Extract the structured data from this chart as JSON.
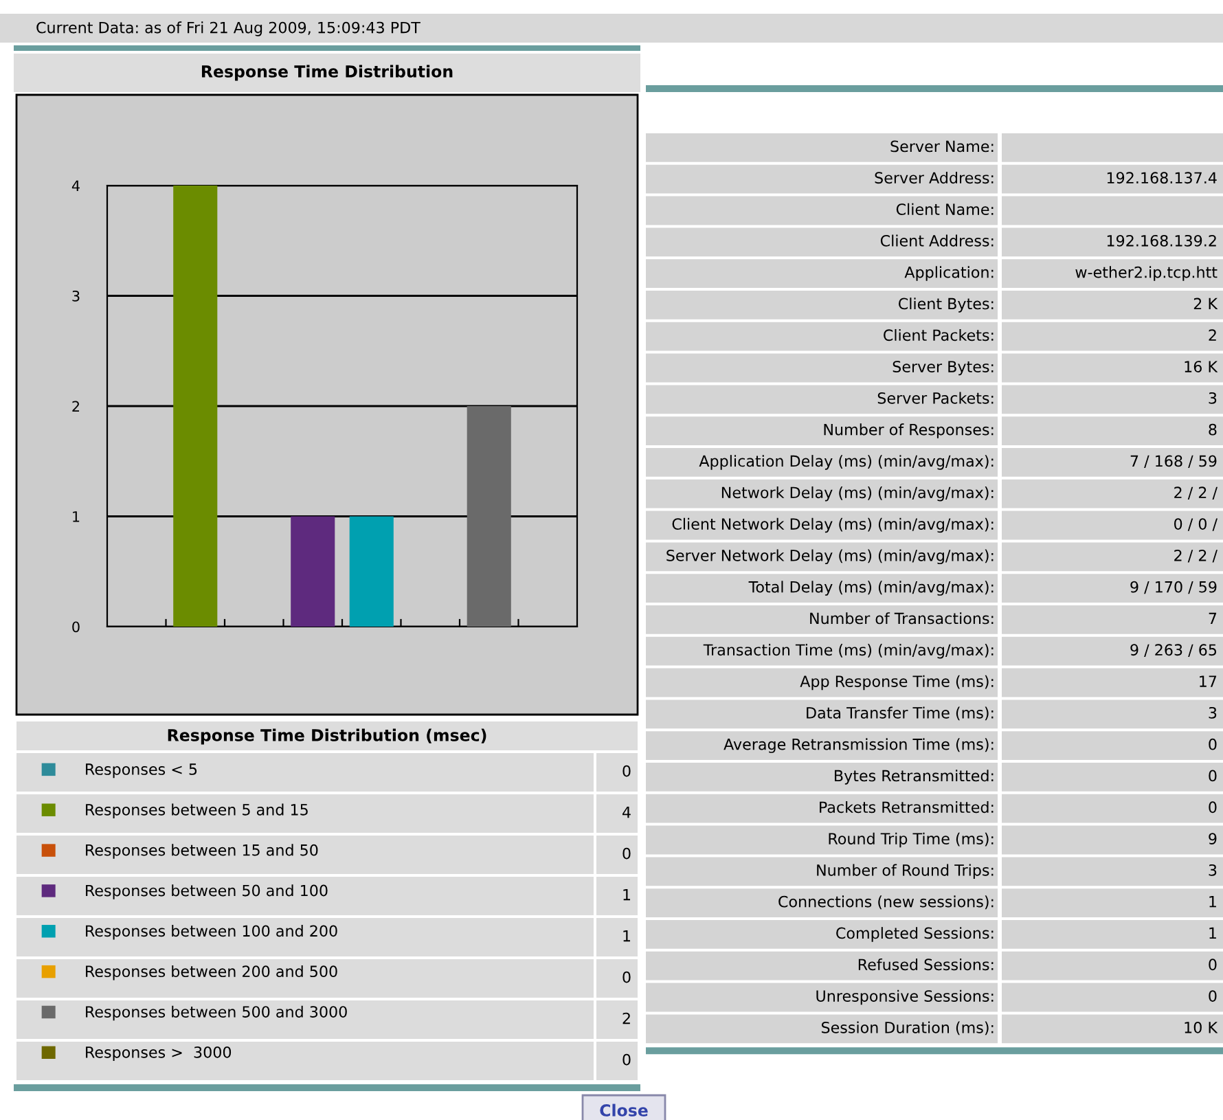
{
  "chart_data": [
    {
      "type": "bar",
      "title": "Response Time Distribution",
      "legend_title": "Response Time Distribution (msec)",
      "categories": [
        null,
        null,
        null,
        null,
        null,
        null,
        null,
        null
      ],
      "series": [
        {
          "name": "Responses < 5",
          "color": "#2e8b9a",
          "values": [
            0,
            null,
            null,
            null,
            null,
            null,
            null,
            null
          ]
        },
        {
          "name": "Responses between 5 and 15",
          "color": "#6b8c00",
          "values": [
            null,
            4,
            null,
            null,
            null,
            null,
            null,
            null
          ]
        },
        {
          "name": "Responses between 15 and 50",
          "color": "#c8500a",
          "values": [
            null,
            null,
            0,
            null,
            null,
            null,
            null,
            null
          ]
        },
        {
          "name": "Responses between 50 and 100",
          "color": "#5e2a7e",
          "values": [
            null,
            null,
            null,
            1,
            null,
            null,
            null,
            null
          ]
        },
        {
          "name": "Responses between 100 and 200",
          "color": "#00a0b0",
          "values": [
            null,
            null,
            null,
            null,
            1,
            null,
            null,
            null
          ]
        },
        {
          "name": "Responses between 200 and 500",
          "color": "#e8a000",
          "values": [
            null,
            null,
            null,
            null,
            null,
            0,
            null,
            null
          ]
        },
        {
          "name": "Responses between 500 and 3000",
          "color": "#6a6a6a",
          "values": [
            null,
            null,
            null,
            null,
            null,
            null,
            2,
            null
          ]
        },
        {
          "name": "Responses >  3000",
          "color": "#6e6800",
          "values": [
            null,
            null,
            null,
            null,
            null,
            null,
            null,
            0
          ]
        }
      ],
      "ylim": [
        0,
        4
      ],
      "yticks": [
        0,
        1,
        2,
        3,
        4
      ],
      "grid": "y",
      "tick_labels": "y",
      "legend": "bottom",
      "annotations": [
        "Current Data: as of Fri 21 Aug 2009, 15:09:43 PDT",
        "Close",
        "0",
        "4",
        "0",
        "1",
        "1",
        "0",
        "2",
        "0"
      ]
    },
    {
      "type": "other",
      "annotations": [
        "Server Name:",
        null,
        "Server Address:",
        "192.168.137.4",
        "Client Name:",
        null,
        "Client Address:",
        "192.168.139.2",
        "Application:",
        "w-ether2.ip.tcp.htt",
        "Client Bytes:",
        "2 K",
        "Client Packets:",
        "2",
        "Server Bytes:",
        "16 K",
        "Server Packets:",
        "3",
        "Number of Responses:",
        "8",
        "Application Delay (ms) (min/avg/max):",
        "7 / 168 / 59",
        "Network Delay (ms) (min/avg/max):",
        "2 / 2 /",
        "Client Network Delay (ms) (min/avg/max):",
        "0 / 0 /",
        "Server Network Delay (ms) (min/avg/max):",
        "2 / 2 /",
        "Total Delay (ms) (min/avg/max):",
        "9 / 170 / 59",
        "Number of Transactions:",
        "7",
        "Transaction Time (ms) (min/avg/max):",
        "9 / 263 / 65",
        "App Response Time (ms):",
        "17",
        "Data Transfer Time (ms):",
        "3",
        "Average Retransmission Time (ms):",
        "0",
        "Bytes Retransmitted:",
        "0",
        "Packets Retransmitted:",
        "0",
        "Round Trip Time (ms):",
        "9",
        "Number of Round Trips:",
        "3",
        "Connections (new sessions):",
        "1",
        "Completed Sessions:",
        "1",
        "Refused Sessions:",
        "0",
        "Unresponsive Sessions:",
        "0",
        "Session Duration (ms):",
        "10 K"
      ]
    }
  ]
}
